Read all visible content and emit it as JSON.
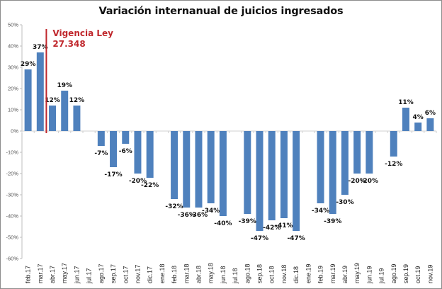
{
  "chart_data": {
    "type": "bar",
    "title": "Variación internanual de juicios ingresados",
    "xlabel": "",
    "ylabel": "",
    "ylim": [
      -0.6,
      0.5
    ],
    "yticks": [
      "50%",
      "40%",
      "30%",
      "20%",
      "10%",
      "0%",
      "-10%",
      "-20%",
      "-30%",
      "-40%",
      "-50%",
      "-60%"
    ],
    "ytick_values": [
      0.5,
      0.4,
      0.3,
      0.2,
      0.1,
      0,
      -0.1,
      -0.2,
      -0.3,
      -0.4,
      -0.5,
      -0.6
    ],
    "grid": false,
    "legend": "none",
    "bar_color": "#4f81bd",
    "categories": [
      "feb.17",
      "mar.17",
      "abr.17",
      "may.17",
      "jun.17",
      "jul.17",
      "ago.17",
      "sep.17",
      "oct.17",
      "nov.17",
      "dic.17",
      "ene.18",
      "feb.18",
      "mar.18",
      "abr.18",
      "may.18",
      "jun.18",
      "jul.18",
      "ago.18",
      "sep.18",
      "oct.18",
      "nov.18",
      "dic.18",
      "ene.19",
      "feb.19",
      "mar.19",
      "abr.19",
      "may.19",
      "jun.19",
      "jul.19",
      "ago.19",
      "sep.19",
      "oct.19",
      "nov.19"
    ],
    "values": [
      0.29,
      0.37,
      0.12,
      0.19,
      0.12,
      null,
      -0.07,
      -0.17,
      -0.06,
      -0.2,
      -0.22,
      null,
      -0.32,
      -0.36,
      -0.36,
      -0.34,
      -0.4,
      null,
      -0.39,
      -0.47,
      -0.42,
      -0.41,
      -0.47,
      null,
      -0.34,
      -0.39,
      -0.3,
      -0.2,
      -0.2,
      null,
      -0.12,
      0.11,
      0.04,
      0.06
    ],
    "data_labels": [
      "29%",
      "37%",
      "12%",
      "19%",
      "12%",
      null,
      "-7%",
      "-17%",
      "-6%",
      "-20%",
      "-22%",
      null,
      "-32%",
      "-36%",
      "-36%",
      "-34%",
      "-40%",
      null,
      "-39%",
      "-47%",
      "-42%",
      "-41%",
      "-47%",
      null,
      "-34%",
      "-39%",
      "-30%",
      "-20%",
      "-20%",
      null,
      "-12%",
      "11%",
      "4%",
      "6%"
    ],
    "annotations": [
      {
        "type": "vertical-line",
        "between": [
          "mar.17",
          "abr.17"
        ],
        "color": "#c0282d",
        "text_lines": [
          "Vigencia Ley",
          "27.348"
        ]
      }
    ]
  }
}
